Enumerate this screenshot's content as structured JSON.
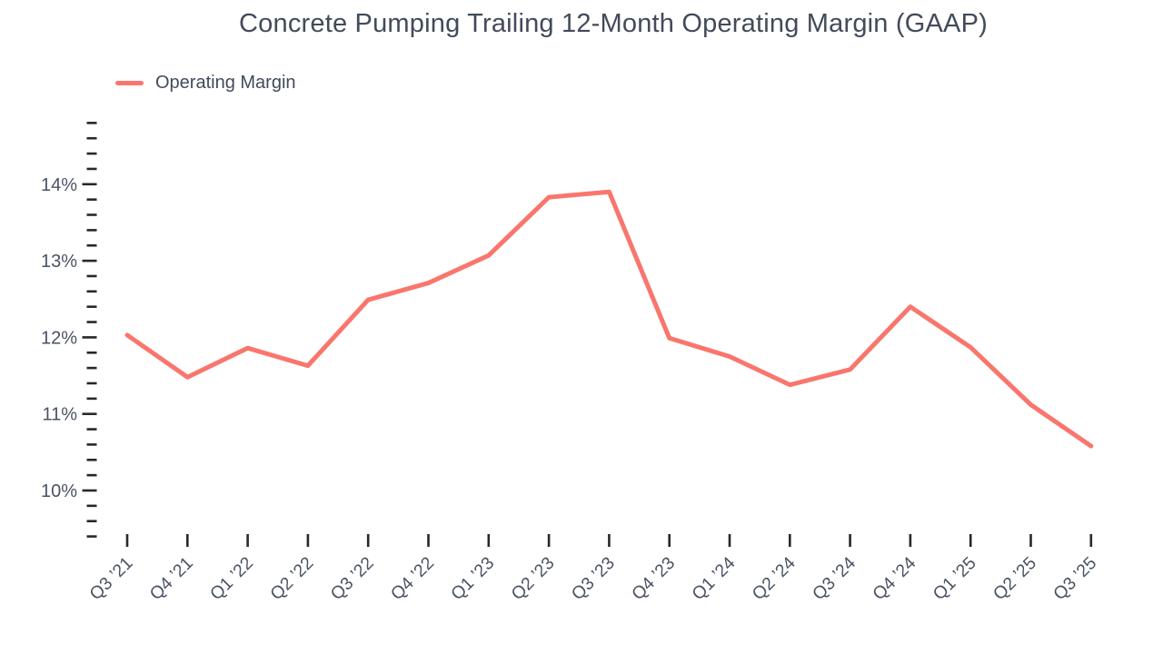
{
  "title": "Concrete Pumping Trailing 12-Month Operating Margin (GAAP)",
  "legend": {
    "items": [
      {
        "label": "Operating Margin",
        "color": "#F9766D"
      }
    ]
  },
  "colors": {
    "line": "#F9766D",
    "text": "#4a5363",
    "title_text": "#414b5a",
    "tick": "#26282c",
    "background": "#ffffff"
  },
  "chart_data": {
    "type": "line",
    "title": "Concrete Pumping Trailing 12-Month Operating Margin (GAAP)",
    "xlabel": "",
    "ylabel": "",
    "grid": false,
    "legend_position": "top-left",
    "categories": [
      "Q3 ’21",
      "Q4 ’21",
      "Q1 ’22",
      "Q2 ’22",
      "Q3 ’22",
      "Q4 ’22",
      "Q1 ’23",
      "Q2 ’23",
      "Q3 ’23",
      "Q4 ’23",
      "Q1 ’24",
      "Q2 ’24",
      "Q3 ’24",
      "Q4 ’24",
      "Q1 ’25",
      "Q2 ’25",
      "Q3 ’25"
    ],
    "series": [
      {
        "name": "Operating Margin",
        "unit": "%",
        "values": [
          12.03,
          11.48,
          11.86,
          11.63,
          12.49,
          12.71,
          13.07,
          13.83,
          13.9,
          11.99,
          11.75,
          11.38,
          11.58,
          12.4,
          11.87,
          11.12,
          10.58
        ]
      }
    ],
    "y_axis": {
      "tick_min": 9.4,
      "tick_max": 14.8,
      "minor_step": 0.2,
      "major_ticks": [
        {
          "value": 10,
          "label": "10%"
        },
        {
          "value": 11,
          "label": "11%"
        },
        {
          "value": 12,
          "label": "12%"
        },
        {
          "value": 13,
          "label": "13%"
        },
        {
          "value": 14,
          "label": "14%"
        }
      ]
    }
  }
}
